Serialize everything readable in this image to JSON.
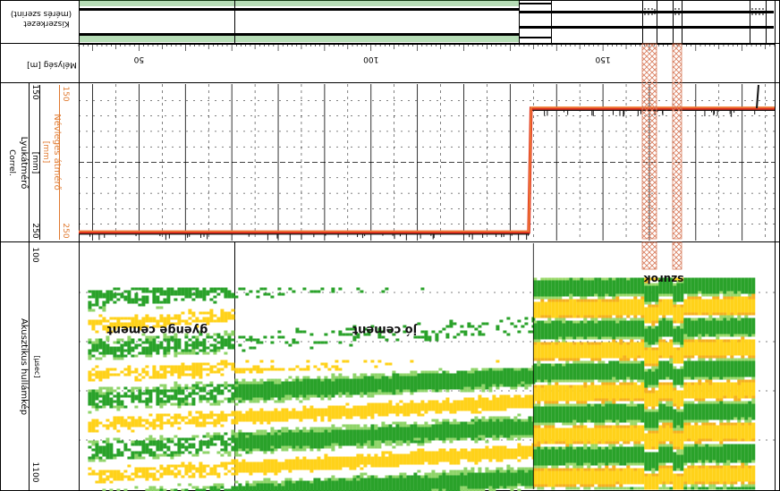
{
  "tracks": {
    "casing": {
      "label": "Kiszerkezet",
      "sublabel": "(mérés szerint)"
    },
    "depth": {
      "label": "Mélység [m]",
      "ticks": [
        {
          "value": 50,
          "label": "50"
        },
        {
          "value": 100,
          "label": "100"
        },
        {
          "value": 150,
          "label": "150"
        }
      ]
    },
    "caliper": {
      "label": "Lyukátmérő",
      "sublabel": "Correl.",
      "unit": "[mm]",
      "scale_min": "150",
      "scale_max": "250",
      "nominal_label": "Névleges átmérő",
      "nominal_unit": "[mm]",
      "nominal_min": "150",
      "nominal_max": "250"
    },
    "acoustic": {
      "label": "Akusztikus hullámkép",
      "unit": "[µsec]",
      "range_top": "100",
      "range_bottom": "1100",
      "annotations": [
        "gyenge cement",
        "jó cement",
        "szurok"
      ]
    }
  },
  "colors": {
    "caliper_line": "#e0301e",
    "nominal_line": "#f08a3c",
    "orange_text": "#e07a30",
    "wave_green": "#2aa22a",
    "wave_yellow": "#ffd21a",
    "pattern_green": "#2e9e2e",
    "hatch": "#d87a5a"
  },
  "chart_data": [
    {
      "type": "line",
      "title": "Lyukátmérő",
      "xlabel": "Mélység [m]",
      "ylabel": "Lyukátmérő [mm]",
      "xlim": [
        37,
        187
      ],
      "ylim": [
        150,
        250
      ],
      "series": [
        {
          "name": "Lyukátmérő",
          "x": [
            37,
            134,
            134.5,
            187
          ],
          "y": [
            245,
            245,
            165,
            165
          ]
        },
        {
          "name": "Névleges átmérő",
          "x": [
            37,
            134,
            134.5,
            187
          ],
          "y": [
            245,
            245,
            165,
            165
          ]
        }
      ]
    },
    {
      "type": "heatmap",
      "title": "Akusztikus hullámkép",
      "xlabel": "Mélység [m]",
      "ylabel": "[µsec]",
      "xlim": [
        37,
        187
      ],
      "ylim": [
        100,
        1100
      ],
      "regions": [
        {
          "label": "gyenge cement",
          "x": [
            39,
            70
          ]
        },
        {
          "label": "jó cement",
          "x": [
            70,
            135
          ]
        },
        {
          "label": "szurok",
          "x": [
            164,
            176
          ]
        }
      ]
    }
  ]
}
